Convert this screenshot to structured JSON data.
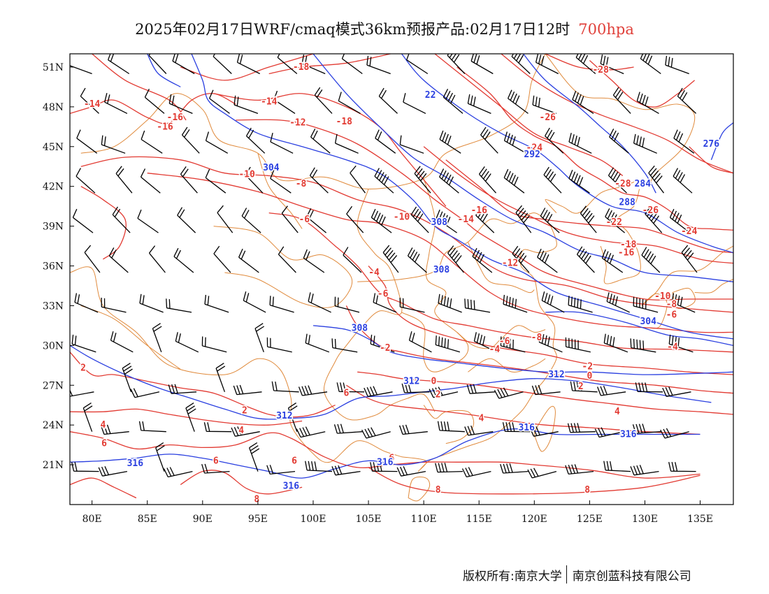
{
  "title": {
    "main": "2025年02月17日WRF/cmaq模式36km预报产品:02月17日12时",
    "level": "700hpa"
  },
  "footer": {
    "left": "版权所有:南京大学",
    "right": "南京创蓝科技有限公司"
  },
  "colors": {
    "temperature": "#e23a32",
    "height": "#2a3fe0",
    "boundary": "#e08a3c",
    "wind": "#000000",
    "level_text": "#e0403a"
  },
  "map": {
    "lon_range": [
      78,
      138
    ],
    "lat_range": [
      18,
      52
    ],
    "lon_ticks": [
      "80E",
      "85E",
      "90E",
      "95E",
      "100E",
      "105E",
      "110E",
      "115E",
      "120E",
      "125E",
      "130E",
      "135E"
    ],
    "lat_ticks": [
      "21N",
      "24N",
      "27N",
      "30N",
      "33N",
      "36N",
      "39N",
      "42N",
      "45N",
      "48N",
      "51N"
    ]
  },
  "temperature_labels": [
    {
      "text": "-18",
      "lon": 98.9,
      "lat": 51.0
    },
    {
      "text": "-18",
      "lon": 102.8,
      "lat": 46.9
    },
    {
      "text": "-14",
      "lon": 80.0,
      "lat": 48.2
    },
    {
      "text": "-16",
      "lon": 87.5,
      "lat": 47.2
    },
    {
      "text": "-16",
      "lon": 86.6,
      "lat": 46.5
    },
    {
      "text": "-14",
      "lon": 96.0,
      "lat": 48.4
    },
    {
      "text": "-12",
      "lon": 98.6,
      "lat": 46.8
    },
    {
      "text": "-10",
      "lon": 94.0,
      "lat": 42.9
    },
    {
      "text": "-8",
      "lon": 98.9,
      "lat": 42.2
    },
    {
      "text": "-6",
      "lon": 99.2,
      "lat": 39.5
    },
    {
      "text": "-10",
      "lon": 108.0,
      "lat": 39.7
    },
    {
      "text": "-16",
      "lon": 115.0,
      "lat": 40.2
    },
    {
      "text": "-14",
      "lon": 113.8,
      "lat": 39.5
    },
    {
      "text": "-12",
      "lon": 117.8,
      "lat": 36.2
    },
    {
      "text": "-4",
      "lon": 105.5,
      "lat": 35.5
    },
    {
      "text": "-6",
      "lon": 106.3,
      "lat": 33.9
    },
    {
      "text": "-2",
      "lon": 106.5,
      "lat": 29.8
    },
    {
      "text": "-6",
      "lon": 117.3,
      "lat": 30.3
    },
    {
      "text": "-4",
      "lon": 116.4,
      "lat": 29.7
    },
    {
      "text": "-8",
      "lon": 120.2,
      "lat": 30.6
    },
    {
      "text": "-28",
      "lon": 126.0,
      "lat": 50.8
    },
    {
      "text": "-26",
      "lon": 121.2,
      "lat": 47.2
    },
    {
      "text": "-24",
      "lon": 120.0,
      "lat": 44.9
    },
    {
      "text": "-28",
      "lon": 128.0,
      "lat": 42.2
    },
    {
      "text": "-26",
      "lon": 130.5,
      "lat": 40.2
    },
    {
      "text": "-22",
      "lon": 127.2,
      "lat": 39.3
    },
    {
      "text": "-18",
      "lon": 128.5,
      "lat": 37.6
    },
    {
      "text": "-16",
      "lon": 128.3,
      "lat": 37.0
    },
    {
      "text": "-24",
      "lon": 134.0,
      "lat": 38.6
    },
    {
      "text": "-10",
      "lon": 131.6,
      "lat": 33.7
    },
    {
      "text": "-8",
      "lon": 132.4,
      "lat": 33.1
    },
    {
      "text": "-6",
      "lon": 132.4,
      "lat": 32.3
    },
    {
      "text": "-4",
      "lon": 132.5,
      "lat": 29.9
    },
    {
      "text": "-2",
      "lon": 124.8,
      "lat": 28.4
    },
    {
      "text": "0",
      "lon": 125.0,
      "lat": 27.7
    },
    {
      "text": "2",
      "lon": 124.2,
      "lat": 26.9
    },
    {
      "text": "4",
      "lon": 127.5,
      "lat": 25.0
    },
    {
      "text": "0",
      "lon": 110.9,
      "lat": 27.3
    },
    {
      "text": "2",
      "lon": 111.3,
      "lat": 26.3
    },
    {
      "text": "4",
      "lon": 115.2,
      "lat": 24.5
    },
    {
      "text": "6",
      "lon": 107.1,
      "lat": 21.5
    },
    {
      "text": "8",
      "lon": 111.3,
      "lat": 19.1
    },
    {
      "text": "8",
      "lon": 124.8,
      "lat": 19.1
    },
    {
      "text": "6",
      "lon": 103.0,
      "lat": 26.4
    },
    {
      "text": "2",
      "lon": 79.2,
      "lat": 28.3
    },
    {
      "text": "2",
      "lon": 93.8,
      "lat": 25.1
    },
    {
      "text": "4",
      "lon": 81.0,
      "lat": 24.0
    },
    {
      "text": "4",
      "lon": 93.5,
      "lat": 23.6
    },
    {
      "text": "6",
      "lon": 81.1,
      "lat": 22.6
    },
    {
      "text": "6",
      "lon": 91.2,
      "lat": 21.3
    },
    {
      "text": "6",
      "lon": 98.3,
      "lat": 21.3
    },
    {
      "text": "8",
      "lon": 94.9,
      "lat": 18.4
    }
  ],
  "height_labels": [
    {
      "text": "22",
      "lon": 110.6,
      "lat": 48.9
    },
    {
      "text": "304",
      "lon": 96.2,
      "lat": 43.4
    },
    {
      "text": "308",
      "lon": 111.4,
      "lat": 39.3
    },
    {
      "text": "308",
      "lon": 111.6,
      "lat": 35.7
    },
    {
      "text": "308",
      "lon": 104.2,
      "lat": 31.3
    },
    {
      "text": "312",
      "lon": 108.9,
      "lat": 27.3
    },
    {
      "text": "312",
      "lon": 97.4,
      "lat": 24.7
    },
    {
      "text": "312",
      "lon": 122.0,
      "lat": 27.8
    },
    {
      "text": "316",
      "lon": 83.9,
      "lat": 21.1
    },
    {
      "text": "316",
      "lon": 106.5,
      "lat": 21.2
    },
    {
      "text": "316",
      "lon": 119.3,
      "lat": 23.8
    },
    {
      "text": "316",
      "lon": 128.5,
      "lat": 23.3
    },
    {
      "text": "316",
      "lon": 98.0,
      "lat": 19.4
    },
    {
      "text": "292",
      "lon": 119.8,
      "lat": 44.4
    },
    {
      "text": "284",
      "lon": 129.8,
      "lat": 42.2
    },
    {
      "text": "288",
      "lon": 128.4,
      "lat": 40.8
    },
    {
      "text": "276",
      "lon": 136.0,
      "lat": 45.2
    },
    {
      "text": "304",
      "lon": 130.3,
      "lat": 31.8
    }
  ]
}
